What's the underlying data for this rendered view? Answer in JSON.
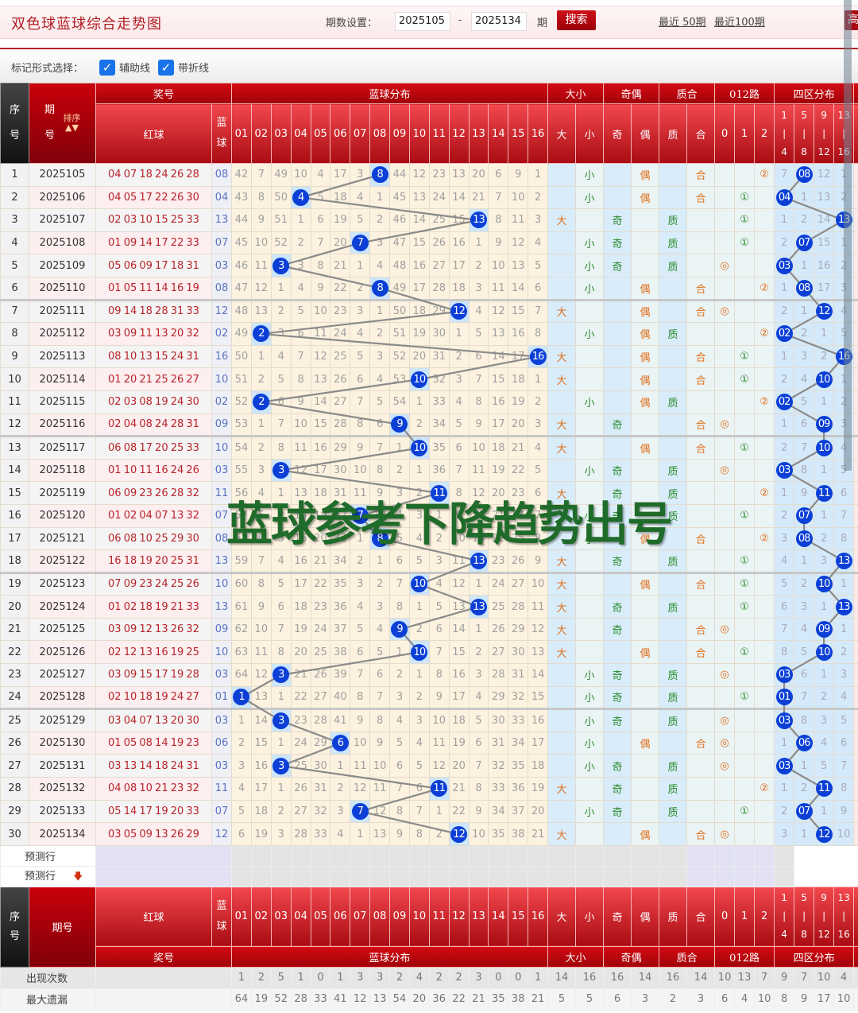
{
  "page": {
    "title": "双色球蓝球综合走势图",
    "period_label": "期数设置：",
    "from": "2025105",
    "dash": "-",
    "to": "2025134",
    "period_unit": "期",
    "search": "搜索",
    "recent50": "最近 50期",
    "recent100": "最近100期",
    "high_btn": "高"
  },
  "marks": {
    "label": "标记形式选择：",
    "aux_line": "辅助线",
    "aux_checked": true,
    "fold_line": "带折线",
    "fold_checked": true
  },
  "header": {
    "seq": "序号",
    "issue": "期号",
    "sort": "排序",
    "prize": "奖号",
    "red": "红球",
    "blue": "蓝球",
    "blue_dist": "蓝球分布",
    "size": "大小",
    "parity": "奇偶",
    "prime": "质合",
    "route": "012路",
    "zones": "四区分布",
    "nums": [
      "01",
      "02",
      "03",
      "04",
      "05",
      "06",
      "07",
      "08",
      "09",
      "10",
      "11",
      "12",
      "13",
      "14",
      "15",
      "16"
    ],
    "attr": [
      "大",
      "小",
      "奇",
      "偶",
      "质",
      "合",
      "0",
      "1",
      "2"
    ],
    "zone_cols": [
      [
        "1",
        "|",
        "4"
      ],
      [
        "5",
        "|",
        "8"
      ],
      [
        "9",
        "|",
        "12"
      ],
      [
        "13",
        "|",
        "16"
      ]
    ]
  },
  "colors": {
    "ball": "#0b3fd6",
    "header_red": "#c8000a",
    "orange": "#e0701e",
    "green": "#2a8a2a"
  },
  "rows": [
    {
      "no": "1",
      "issue": "2025105",
      "red": "04 07 18 24 26 28",
      "blue": "08",
      "miss": [
        42,
        7,
        49,
        10,
        4,
        17,
        3,
        null,
        44,
        12,
        23,
        13,
        20,
        6,
        9,
        1
      ],
      "size": "小",
      "parity": "偶",
      "prime": "合",
      "route": "②",
      "zone": [
        7,
        null,
        12,
        1
      ]
    },
    {
      "no": "2",
      "issue": "2025106",
      "red": "04 05 17 22 26 30",
      "blue": "04",
      "miss": [
        43,
        8,
        50,
        null,
        5,
        18,
        4,
        1,
        45,
        13,
        24,
        14,
        21,
        7,
        10,
        2
      ],
      "size": "小",
      "parity": "偶",
      "prime": "合",
      "route": "①",
      "zone": [
        null,
        1,
        13,
        2
      ]
    },
    {
      "no": "3",
      "issue": "2025107",
      "red": "02 03 10 15 25 33",
      "blue": "13",
      "miss": [
        44,
        9,
        51,
        1,
        6,
        19,
        5,
        2,
        46,
        14,
        25,
        15,
        null,
        8,
        11,
        3
      ],
      "size": "大",
      "parity": "奇",
      "prime": "质",
      "route": "①",
      "zone": [
        1,
        2,
        14,
        null
      ]
    },
    {
      "no": "4",
      "issue": "2025108",
      "red": "01 09 14 17 22 33",
      "blue": "07",
      "miss": [
        45,
        10,
        52,
        2,
        7,
        20,
        null,
        3,
        47,
        15,
        26,
        16,
        1,
        9,
        12,
        4
      ],
      "size": "小",
      "parity": "奇",
      "prime": "质",
      "route": "①",
      "zone": [
        2,
        null,
        15,
        1
      ]
    },
    {
      "no": "5",
      "issue": "2025109",
      "red": "05 06 09 17 18 31",
      "blue": "03",
      "miss": [
        46,
        11,
        null,
        3,
        8,
        21,
        1,
        4,
        48,
        16,
        27,
        17,
        2,
        10,
        13,
        5
      ],
      "size": "小",
      "parity": "奇",
      "prime": "质",
      "route": "◎",
      "zone": [
        null,
        1,
        16,
        2
      ]
    },
    {
      "no": "6",
      "issue": "2025110",
      "red": "01 05 11 14 16 19",
      "blue": "08",
      "miss": [
        47,
        12,
        1,
        4,
        9,
        22,
        2,
        null,
        49,
        17,
        28,
        18,
        3,
        11,
        14,
        6
      ],
      "size": "小",
      "parity": "偶",
      "prime": "合",
      "route": "②",
      "zone": [
        1,
        null,
        17,
        3
      ]
    },
    {
      "no": "7",
      "issue": "2025111",
      "red": "09 14 18 28 31 33",
      "blue": "12",
      "miss": [
        48,
        13,
        2,
        5,
        10,
        23,
        3,
        1,
        50,
        18,
        29,
        null,
        4,
        12,
        15,
        7
      ],
      "size": "大",
      "parity": "偶",
      "prime": "合",
      "route": "◎",
      "zone": [
        2,
        1,
        null,
        4
      ]
    },
    {
      "no": "8",
      "issue": "2025112",
      "red": "03 09 11 13 20 32",
      "blue": "02",
      "miss": [
        49,
        null,
        3,
        6,
        11,
        24,
        4,
        2,
        51,
        19,
        30,
        1,
        5,
        13,
        16,
        8
      ],
      "size": "小",
      "parity": "偶",
      "prime": "质",
      "route": "②",
      "zone": [
        null,
        2,
        1,
        5
      ]
    },
    {
      "no": "9",
      "issue": "2025113",
      "red": "08 10 13 15 24 31",
      "blue": "16",
      "miss": [
        50,
        1,
        4,
        7,
        12,
        25,
        5,
        3,
        52,
        20,
        31,
        2,
        6,
        14,
        17,
        null
      ],
      "size": "大",
      "parity": "偶",
      "prime": "合",
      "route": "①",
      "zone": [
        1,
        3,
        2,
        null
      ]
    },
    {
      "no": "10",
      "issue": "2025114",
      "red": "01 20 21 25 26 27",
      "blue": "10",
      "miss": [
        51,
        2,
        5,
        8,
        13,
        26,
        6,
        4,
        53,
        null,
        32,
        3,
        7,
        15,
        18,
        1
      ],
      "size": "大",
      "parity": "偶",
      "prime": "合",
      "route": "①",
      "zone": [
        2,
        4,
        null,
        1
      ]
    },
    {
      "no": "11",
      "issue": "2025115",
      "red": "02 03 08 19 24 30",
      "blue": "02",
      "miss": [
        52,
        null,
        6,
        9,
        14,
        27,
        7,
        5,
        54,
        1,
        33,
        4,
        8,
        16,
        19,
        2
      ],
      "size": "小",
      "parity": "偶",
      "prime": "质",
      "route": "②",
      "zone": [
        null,
        5,
        1,
        2
      ]
    },
    {
      "no": "12",
      "issue": "2025116",
      "red": "02 04 08 24 28 31",
      "blue": "09",
      "miss": [
        53,
        1,
        7,
        10,
        15,
        28,
        8,
        6,
        null,
        2,
        34,
        5,
        9,
        17,
        20,
        3
      ],
      "size": "大",
      "parity": "奇",
      "prime": "合",
      "route": "◎",
      "zone": [
        1,
        6,
        null,
        3
      ]
    },
    {
      "no": "13",
      "issue": "2025117",
      "red": "06 08 17 20 25 33",
      "blue": "10",
      "miss": [
        54,
        2,
        8,
        11,
        16,
        29,
        9,
        7,
        1,
        null,
        35,
        6,
        10,
        18,
        21,
        4
      ],
      "size": "大",
      "parity": "偶",
      "prime": "合",
      "route": "①",
      "zone": [
        2,
        7,
        null,
        4
      ]
    },
    {
      "no": "14",
      "issue": "2025118",
      "red": "01 10 11 16 24 26",
      "blue": "03",
      "miss": [
        55,
        3,
        null,
        12,
        17,
        30,
        10,
        8,
        2,
        1,
        36,
        7,
        11,
        19,
        22,
        5
      ],
      "size": "小",
      "parity": "奇",
      "prime": "质",
      "route": "◎",
      "zone": [
        null,
        8,
        1,
        5
      ]
    },
    {
      "no": "15",
      "issue": "2025119",
      "red": "06 09 23 26 28 32",
      "blue": "11",
      "miss": [
        56,
        4,
        1,
        13,
        18,
        31,
        11,
        9,
        3,
        2,
        null,
        8,
        12,
        20,
        23,
        6
      ],
      "size": "大",
      "parity": "奇",
      "prime": "质",
      "route": "②",
      "zone": [
        1,
        9,
        null,
        6
      ]
    },
    {
      "no": "16",
      "issue": "2025120",
      "red": "01 02 04 07 13 32",
      "blue": "07",
      "miss": [
        57,
        5,
        2,
        14,
        19,
        32,
        null,
        10,
        4,
        3,
        1,
        9,
        13,
        21,
        24,
        7
      ],
      "size": "小",
      "parity": "奇",
      "prime": "质",
      "route": "①",
      "zone": [
        2,
        null,
        1,
        7
      ]
    },
    {
      "no": "17",
      "issue": "2025121",
      "red": "06 08 10 25 29 30",
      "blue": "08",
      "miss": [
        58,
        6,
        3,
        15,
        20,
        33,
        1,
        null,
        5,
        4,
        2,
        10,
        14,
        22,
        25,
        8
      ],
      "size": "小",
      "parity": "偶",
      "prime": "合",
      "route": "②",
      "zone": [
        3,
        null,
        2,
        8
      ]
    },
    {
      "no": "18",
      "issue": "2025122",
      "red": "16 18 19 20 25 31",
      "blue": "13",
      "miss": [
        59,
        7,
        4,
        16,
        21,
        34,
        2,
        1,
        6,
        5,
        3,
        11,
        null,
        23,
        26,
        9
      ],
      "size": "大",
      "parity": "奇",
      "prime": "质",
      "route": "①",
      "zone": [
        4,
        1,
        3,
        null
      ]
    },
    {
      "no": "19",
      "issue": "2025123",
      "red": "07 09 23 24 25 26",
      "blue": "10",
      "miss": [
        60,
        8,
        5,
        17,
        22,
        35,
        3,
        2,
        7,
        null,
        4,
        12,
        1,
        24,
        27,
        10
      ],
      "size": "大",
      "parity": "偶",
      "prime": "合",
      "route": "①",
      "zone": [
        5,
        2,
        null,
        1
      ]
    },
    {
      "no": "20",
      "issue": "2025124",
      "red": "01 02 18 19 21 33",
      "blue": "13",
      "miss": [
        61,
        9,
        6,
        18,
        23,
        36,
        4,
        3,
        8,
        1,
        5,
        13,
        null,
        25,
        28,
        11
      ],
      "size": "大",
      "parity": "奇",
      "prime": "质",
      "route": "①",
      "zone": [
        6,
        3,
        1,
        null
      ]
    },
    {
      "no": "21",
      "issue": "2025125",
      "red": "03 09 12 13 26 32",
      "blue": "09",
      "miss": [
        62,
        10,
        7,
        19,
        24,
        37,
        5,
        4,
        null,
        2,
        6,
        14,
        1,
        26,
        29,
        12
      ],
      "size": "大",
      "parity": "奇",
      "prime": "合",
      "route": "◎",
      "zone": [
        7,
        4,
        null,
        1
      ]
    },
    {
      "no": "22",
      "issue": "2025126",
      "red": "02 12 13 16 19 25",
      "blue": "10",
      "miss": [
        63,
        11,
        8,
        20,
        25,
        38,
        6,
        5,
        1,
        null,
        7,
        15,
        2,
        27,
        30,
        13
      ],
      "size": "大",
      "parity": "偶",
      "prime": "合",
      "route": "①",
      "zone": [
        8,
        5,
        null,
        2
      ]
    },
    {
      "no": "23",
      "issue": "2025127",
      "red": "03 09 15 17 19 28",
      "blue": "03",
      "miss": [
        64,
        12,
        null,
        21,
        26,
        39,
        7,
        6,
        2,
        1,
        8,
        16,
        3,
        28,
        31,
        14
      ],
      "size": "小",
      "parity": "奇",
      "prime": "质",
      "route": "◎",
      "zone": [
        null,
        6,
        1,
        3
      ]
    },
    {
      "no": "24",
      "issue": "2025128",
      "red": "02 10 18 19 24 27",
      "blue": "01",
      "miss": [
        null,
        13,
        1,
        22,
        27,
        40,
        8,
        7,
        3,
        2,
        9,
        17,
        4,
        29,
        32,
        15
      ],
      "size": "小",
      "parity": "奇",
      "prime": "质",
      "route": "①",
      "zone": [
        null,
        7,
        2,
        4
      ]
    },
    {
      "no": "25",
      "issue": "2025129",
      "red": "03 04 07 13 20 30",
      "blue": "03",
      "miss": [
        1,
        14,
        null,
        23,
        28,
        41,
        9,
        8,
        4,
        3,
        10,
        18,
        5,
        30,
        33,
        16
      ],
      "size": "小",
      "parity": "奇",
      "prime": "质",
      "route": "◎",
      "zone": [
        null,
        8,
        3,
        5
      ]
    },
    {
      "no": "26",
      "issue": "2025130",
      "red": "01 05 08 14 19 23",
      "blue": "06",
      "miss": [
        2,
        15,
        1,
        24,
        29,
        null,
        10,
        9,
        5,
        4,
        11,
        19,
        6,
        31,
        34,
        17
      ],
      "size": "小",
      "parity": "偶",
      "prime": "合",
      "route": "◎",
      "zone": [
        1,
        null,
        4,
        6
      ]
    },
    {
      "no": "27",
      "issue": "2025131",
      "red": "03 13 14 18 24 31",
      "blue": "03",
      "miss": [
        3,
        16,
        null,
        25,
        30,
        1,
        11,
        10,
        6,
        5,
        12,
        20,
        7,
        32,
        35,
        18
      ],
      "size": "小",
      "parity": "奇",
      "prime": "质",
      "route": "◎",
      "zone": [
        null,
        1,
        5,
        7
      ]
    },
    {
      "no": "28",
      "issue": "2025132",
      "red": "04 08 10 21 23 32",
      "blue": "11",
      "miss": [
        4,
        17,
        1,
        26,
        31,
        2,
        12,
        11,
        7,
        6,
        null,
        21,
        8,
        33,
        36,
        19
      ],
      "size": "大",
      "parity": "奇",
      "prime": "质",
      "route": "②",
      "zone": [
        1,
        2,
        null,
        8
      ]
    },
    {
      "no": "29",
      "issue": "2025133",
      "red": "05 14 17 19 20 33",
      "blue": "07",
      "miss": [
        5,
        18,
        2,
        27,
        32,
        3,
        null,
        12,
        8,
        7,
        1,
        22,
        9,
        34,
        37,
        20
      ],
      "size": "小",
      "parity": "奇",
      "prime": "质",
      "route": "①",
      "zone": [
        2,
        null,
        1,
        9
      ]
    },
    {
      "no": "30",
      "issue": "2025134",
      "red": "03 05 09 13 26 29",
      "blue": "12",
      "miss": [
        6,
        19,
        3,
        28,
        33,
        4,
        1,
        13,
        9,
        8,
        2,
        null,
        10,
        35,
        38,
        21
      ],
      "size": "大",
      "parity": "偶",
      "prime": "合",
      "route": "◎",
      "zone": [
        3,
        1,
        null,
        10
      ]
    }
  ],
  "predict": {
    "label1": "预测行",
    "label2": "预测行"
  },
  "stats": {
    "count_label": "出现次数",
    "counts": [
      1,
      2,
      5,
      1,
      0,
      1,
      3,
      3,
      2,
      4,
      2,
      2,
      3,
      0,
      0,
      1,
      14,
      16,
      16,
      14,
      16,
      14,
      10,
      13,
      7,
      9,
      7,
      10,
      4
    ],
    "maxmiss_label": "最大遗漏",
    "maxmiss": [
      64,
      19,
      52,
      28,
      33,
      41,
      12,
      13,
      54,
      20,
      36,
      22,
      21,
      35,
      38,
      21,
      5,
      5,
      6,
      3,
      2,
      3,
      6,
      4,
      10,
      8,
      9,
      17,
      10
    ]
  },
  "watermark": "蓝球参考下降趋势出号"
}
